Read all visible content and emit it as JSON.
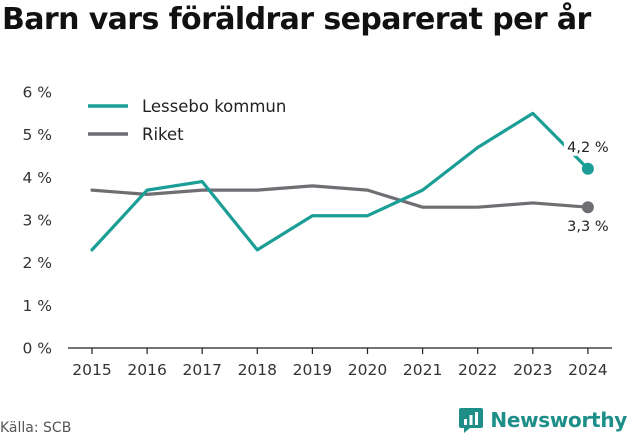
{
  "title": "Barn vars föräldrar separerat per år",
  "source": "Källa: SCB",
  "brand": {
    "name": "Newsworthy",
    "logo_icon": "newsworthy-logo-icon"
  },
  "colors": {
    "lessebo": "#1a9e96",
    "riket": "#6e6e73",
    "axis": "#222222"
  },
  "chart_data": {
    "type": "line",
    "title": "Barn vars föräldrar separerat per år",
    "x": [
      2015,
      2016,
      2017,
      2018,
      2019,
      2020,
      2021,
      2022,
      2023,
      2024
    ],
    "x_tick_labels": [
      "2015",
      "2016",
      "2017",
      "2018",
      "2019",
      "2020",
      "2021",
      "2022",
      "2023",
      "2024"
    ],
    "y_tick_labels": [
      "0 %",
      "1 %",
      "2 %",
      "3 %",
      "4 %",
      "5 %",
      "6 %"
    ],
    "ylim": [
      0,
      6
    ],
    "grid": false,
    "legend_position": "top-left",
    "series": [
      {
        "name": "Lessebo kommun",
        "values": [
          2.3,
          3.7,
          3.9,
          2.3,
          3.1,
          3.1,
          3.7,
          4.7,
          5.5,
          4.2
        ],
        "end_label": "4,2 %"
      },
      {
        "name": "Riket",
        "values": [
          3.7,
          3.6,
          3.7,
          3.7,
          3.8,
          3.7,
          3.3,
          3.3,
          3.4,
          3.3
        ],
        "end_label": "3,3 %"
      }
    ]
  }
}
